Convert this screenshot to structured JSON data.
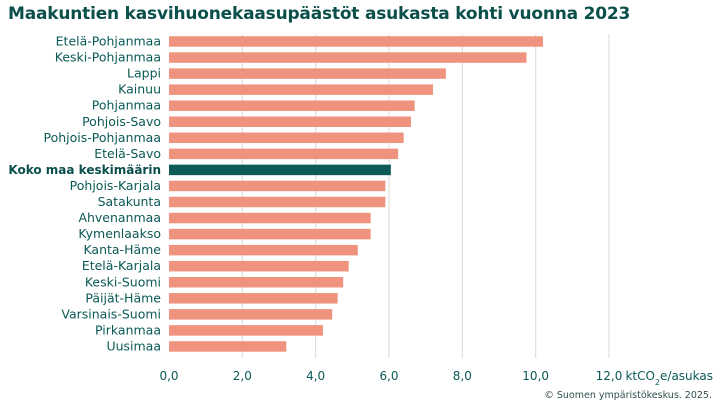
{
  "chart_data": {
    "type": "bar",
    "orientation": "horizontal",
    "title": "Maakuntien kasvihuonekaasupäästöt asukasta kohti vuonna 2023",
    "xlabel": "ktCO₂e/asukas",
    "xlabel_parts": {
      "pre": "ktCO",
      "sub": "2",
      "post": "e/asukas"
    },
    "xlim": [
      0,
      12
    ],
    "ticks": [
      0,
      2,
      4,
      6,
      8,
      10,
      12
    ],
    "tick_labels": [
      "0,0",
      "2,0",
      "4,0",
      "6,0",
      "8,0",
      "10,0",
      "12,0"
    ],
    "grid": "vertical",
    "colors": {
      "bar": "#f0937e",
      "highlight": "#0b5a56",
      "text": "#0b5a56",
      "grid": "#d9d9d9"
    },
    "categories": [
      "Etelä-Pohjanmaa",
      "Keski-Pohjanmaa",
      "Lappi",
      "Kainuu",
      "Pohjanmaa",
      "Pohjois-Savo",
      "Pohjois-Pohjanmaa",
      "Etelä-Savo",
      "Koko maa keskimäärin",
      "Pohjois-Karjala",
      "Satakunta",
      "Ahvenanmaa",
      "Kymenlaakso",
      "Kanta-Häme",
      "Etelä-Karjala",
      "Keski-Suomi",
      "Päijät-Häme",
      "Varsinais-Suomi",
      "Pirkanmaa",
      "Uusimaa"
    ],
    "values": [
      10.2,
      9.75,
      7.55,
      7.2,
      6.7,
      6.6,
      6.4,
      6.25,
      6.05,
      5.9,
      5.9,
      5.5,
      5.5,
      5.15,
      4.9,
      4.75,
      4.6,
      4.45,
      4.2,
      3.2
    ],
    "highlight": "Koko maa keskimäärin"
  },
  "source": "© Suomen ympäristökeskus. 2025."
}
